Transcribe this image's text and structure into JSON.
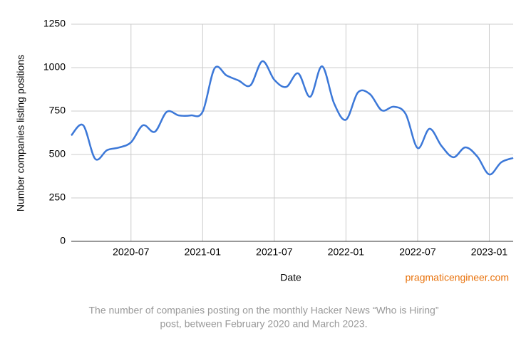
{
  "chart_data": {
    "type": "line",
    "x_label": "Date",
    "y_label": "Number companies listing positions",
    "watermark": "pragmaticengineer.com",
    "caption": [
      "The number of companies posting on the monthly Hacker News “Who is Hiring”",
      "post, between February 2020 and March 2023."
    ],
    "x": [
      "2020-02",
      "2020-03",
      "2020-04",
      "2020-05",
      "2020-06",
      "2020-07",
      "2020-08",
      "2020-09",
      "2020-10",
      "2020-11",
      "2020-12",
      "2021-01",
      "2021-02",
      "2021-03",
      "2021-04",
      "2021-05",
      "2021-06",
      "2021-07",
      "2021-08",
      "2021-09",
      "2021-10",
      "2021-11",
      "2021-12",
      "2022-01",
      "2022-02",
      "2022-03",
      "2022-04",
      "2022-05",
      "2022-06",
      "2022-07",
      "2022-08",
      "2022-09",
      "2022-10",
      "2022-11",
      "2022-12",
      "2023-01",
      "2023-02",
      "2023-03"
    ],
    "series": [
      {
        "name": "Companies",
        "color": "#3c78d8",
        "values": [
          610,
          668,
          475,
          525,
          540,
          570,
          668,
          631,
          746,
          725,
          725,
          746,
          996,
          955,
          926,
          898,
          1037,
          930,
          889,
          967,
          832,
          1008,
          795,
          700,
          857,
          848,
          754,
          775,
          733,
          537,
          648,
          549,
          484,
          541,
          488,
          385,
          455,
          480
        ]
      }
    ],
    "xlim": [
      "2020-02",
      "2023-03"
    ],
    "xticks": [
      "2020-07",
      "2021-01",
      "2021-07",
      "2022-01",
      "2022-07",
      "2023-01"
    ],
    "ylim": [
      0,
      1250
    ],
    "yticks": [
      0,
      250,
      500,
      750,
      1000,
      1250
    ],
    "grid": true
  }
}
